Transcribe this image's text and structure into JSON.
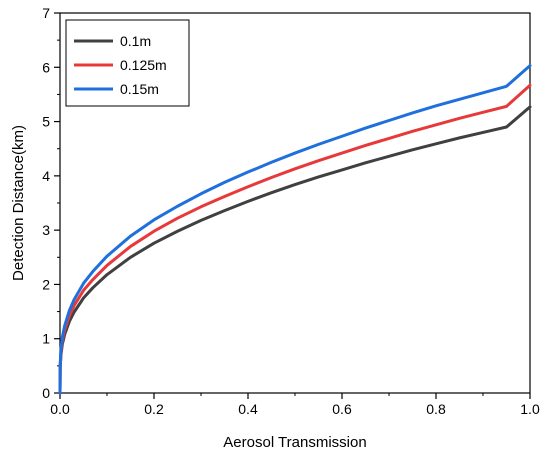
{
  "chart_data": {
    "type": "line",
    "xlabel": "Aerosol Transmission",
    "ylabel": "Detection Distance(km)",
    "xlim": [
      0,
      1.0
    ],
    "ylim": [
      0,
      7
    ],
    "x_ticks": [
      "0.0",
      "0.2",
      "0.4",
      "0.6",
      "0.8",
      "1.0"
    ],
    "y_ticks": [
      "0",
      "1",
      "2",
      "3",
      "4",
      "5",
      "6",
      "7"
    ],
    "grid": false,
    "legend_position": "top-left",
    "x": [
      0,
      0.0005,
      0.002,
      0.005,
      0.01,
      0.02,
      0.03,
      0.05,
      0.07,
      0.1,
      0.15,
      0.2,
      0.25,
      0.3,
      0.35,
      0.4,
      0.45,
      0.5,
      0.55,
      0.6,
      0.65,
      0.7,
      0.75,
      0.8,
      0.85,
      0.9,
      0.95,
      1.0
    ],
    "series": [
      {
        "name": "0.1m",
        "color": "#404040",
        "values": [
          0,
          0.47,
          0.7,
          0.9,
          1.08,
          1.32,
          1.49,
          1.75,
          1.94,
          2.18,
          2.5,
          2.76,
          2.98,
          3.18,
          3.36,
          3.53,
          3.69,
          3.84,
          3.98,
          4.11,
          4.24,
          4.36,
          4.48,
          4.59,
          4.7,
          4.8,
          4.9,
          5.27
        ]
      },
      {
        "name": "0.125m",
        "color": "#e8393a",
        "values": [
          0,
          0.5,
          0.75,
          0.97,
          1.16,
          1.42,
          1.61,
          1.89,
          2.09,
          2.35,
          2.7,
          2.98,
          3.22,
          3.43,
          3.62,
          3.8,
          3.97,
          4.13,
          4.28,
          4.42,
          4.56,
          4.69,
          4.82,
          4.94,
          5.06,
          5.17,
          5.28,
          5.67
        ]
      },
      {
        "name": "0.15m",
        "color": "#1f6fdc",
        "values": [
          0,
          0.54,
          0.8,
          1.03,
          1.24,
          1.52,
          1.72,
          2.02,
          2.24,
          2.52,
          2.89,
          3.19,
          3.44,
          3.67,
          3.88,
          4.07,
          4.25,
          4.42,
          4.58,
          4.73,
          4.88,
          5.02,
          5.16,
          5.29,
          5.41,
          5.53,
          5.65,
          6.03
        ]
      }
    ]
  }
}
